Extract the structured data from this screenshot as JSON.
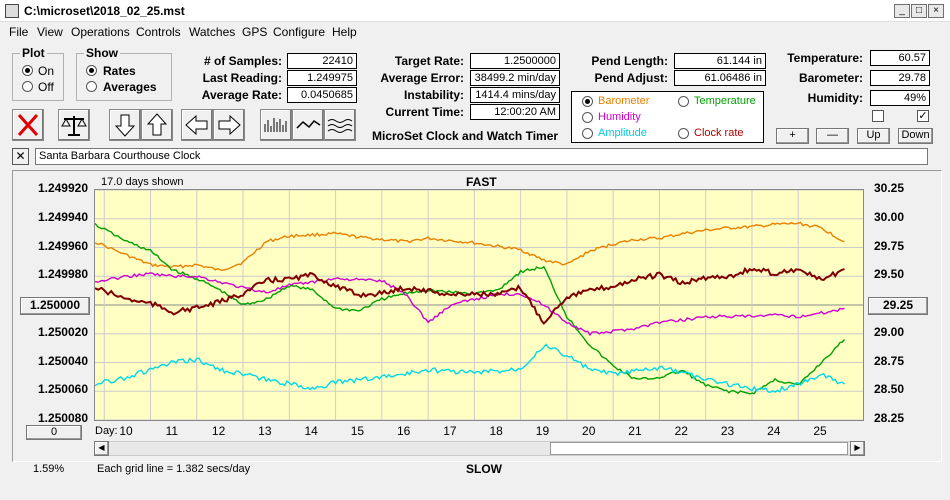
{
  "window": {
    "title": "C:\\microset\\2018_02_25.mst"
  },
  "menu": [
    "File",
    "View",
    "Operations",
    "Controls",
    "Watches",
    "GPS",
    "Configure",
    "Help"
  ],
  "plot_group": {
    "title": "Plot",
    "options": [
      "On",
      "Off"
    ],
    "selected": "On"
  },
  "show_group": {
    "title": "Show",
    "options": [
      "Rates",
      "Averages"
    ],
    "selected": "Rates"
  },
  "stats_left": [
    {
      "label": "# of Samples:",
      "value": "22410"
    },
    {
      "label": "Last Reading:",
      "value": "1.249975"
    },
    {
      "label": "Average Rate:",
      "value": "0.0450685"
    }
  ],
  "stats_mid": [
    {
      "label": "Target Rate:",
      "value": "1.2500000"
    },
    {
      "label": "Average Error:",
      "value": "38499.2 min/day"
    },
    {
      "label": "Instability:",
      "value": "1414.4 mins/day"
    },
    {
      "label": "Current Time:",
      "value": "12:00:20 AM"
    }
  ],
  "app_subtitle": "MicroSet Clock and Watch Timer",
  "pend": [
    {
      "label": "Pend Length:",
      "value": "61.144 in"
    },
    {
      "label": "Pend Adjust:",
      "value": "61.06486 in"
    }
  ],
  "env": [
    {
      "label": "Temperature:",
      "value": "60.57"
    },
    {
      "label": "Barometer:",
      "value": "29.78"
    },
    {
      "label": "Humidity:",
      "value": "49%"
    }
  ],
  "overlay_options": [
    {
      "label": "Barometer",
      "color": "#e88000",
      "selected": true
    },
    {
      "label": "Temperature",
      "color": "#00a000",
      "selected": false
    },
    {
      "label": "Humidity",
      "color": "#d000d0",
      "selected": false
    },
    {
      "label": "Clock rate",
      "color": "#b00000",
      "selected": false
    },
    {
      "label": "Amplitude",
      "color": "#00c8e0",
      "selected": false
    }
  ],
  "checkboxes": [
    false,
    true
  ],
  "small_buttons": [
    "+",
    "—",
    "Up",
    "Down"
  ],
  "description": "Santa Barbara Courthouse Clock",
  "chart_data": {
    "type": "line",
    "header_left": "17.0 days shown",
    "top_label": "FAST",
    "bottom_label": "SLOW",
    "footer_left": "Each grid line = 1.382 secs/day",
    "x_axis_label": "Day:",
    "x_ticks": [
      "10",
      "11",
      "12",
      "13",
      "14",
      "15",
      "16",
      "17",
      "18",
      "19",
      "20",
      "21",
      "22",
      "23",
      "24",
      "25"
    ],
    "y_left_ticks": [
      "1.249920",
      "1.249940",
      "1.249960",
      "1.249980",
      "1.250000",
      "1.250020",
      "1.250040",
      "1.250060",
      "1.250080"
    ],
    "y_left_ylim": [
      1.24992,
      1.25008
    ],
    "y_right_ticks": [
      "30.25",
      "30.00",
      "29.75",
      "29.50",
      "29.25",
      "29.00",
      "28.75",
      "28.50",
      "28.25"
    ],
    "y_right_ylim": [
      28.25,
      30.25
    ],
    "center_button": "1.250000",
    "right_button": "29.25",
    "zero_button": "0",
    "percent": "1.59%",
    "xlim": [
      9.3,
      25.9
    ],
    "series": [
      {
        "name": "Barometer",
        "color": "#e88000",
        "axis": "right",
        "x": [
          9.3,
          10,
          10.5,
          11,
          11.5,
          12,
          12.5,
          13,
          13.5,
          14,
          14.5,
          15,
          15.5,
          16,
          16.5,
          17,
          17.5,
          18,
          18.5,
          19,
          19.5,
          20,
          20.5,
          21,
          21.5,
          22,
          22.5,
          23,
          23.5,
          24,
          24.5,
          25,
          25.5
        ],
        "y": [
          29.8,
          29.68,
          29.6,
          29.58,
          29.6,
          29.55,
          29.62,
          29.8,
          29.85,
          29.86,
          29.87,
          29.84,
          29.82,
          29.8,
          29.83,
          29.81,
          29.79,
          29.76,
          29.73,
          29.64,
          29.6,
          29.72,
          29.78,
          29.82,
          29.83,
          29.87,
          29.9,
          29.92,
          29.93,
          29.95,
          29.96,
          29.92,
          29.8
        ]
      },
      {
        "name": "Temperature",
        "color": "#00a000",
        "axis": "right",
        "x": [
          9.3,
          10,
          10.5,
          11,
          11.5,
          12,
          12.5,
          13,
          13.5,
          14,
          14.5,
          15,
          15.5,
          16,
          16.5,
          17,
          17.5,
          18,
          18.5,
          19,
          19.5,
          20,
          20.5,
          21,
          21.5,
          22,
          22.5,
          23,
          23.5,
          24,
          24.5,
          25,
          25.5
        ],
        "y": [
          29.95,
          29.8,
          29.72,
          29.55,
          29.48,
          29.38,
          29.25,
          29.3,
          29.42,
          29.38,
          29.22,
          29.2,
          29.3,
          29.35,
          29.38,
          29.36,
          29.35,
          29.38,
          29.54,
          29.58,
          29.15,
          28.9,
          28.72,
          28.6,
          28.62,
          28.68,
          28.55,
          28.5,
          28.48,
          28.6,
          28.55,
          28.75,
          28.95
        ]
      },
      {
        "name": "Humidity",
        "color": "#d000d0",
        "axis": "right",
        "x": [
          9.3,
          10,
          10.5,
          11,
          11.5,
          12,
          12.5,
          13,
          13.5,
          14,
          14.5,
          15,
          15.5,
          16,
          16.5,
          17,
          17.5,
          18,
          18.5,
          19,
          19.5,
          20,
          20.5,
          21,
          21.5,
          22,
          22.5,
          23,
          23.5,
          24,
          24.5,
          25,
          25.5
        ],
        "y": [
          29.45,
          29.5,
          29.52,
          29.5,
          29.5,
          29.45,
          29.4,
          29.36,
          29.42,
          29.45,
          29.48,
          29.47,
          29.46,
          29.35,
          29.1,
          29.25,
          29.3,
          29.34,
          29.35,
          29.25,
          29.1,
          29.0,
          29.02,
          29.05,
          29.1,
          29.12,
          29.15,
          29.15,
          29.15,
          29.16,
          29.15,
          29.18,
          29.22
        ]
      },
      {
        "name": "Clock rate",
        "color": "#800000",
        "axis": "left",
        "x": [
          9.3,
          10,
          10.5,
          11,
          11.5,
          12,
          12.5,
          13,
          13.5,
          14,
          14.5,
          15,
          15.5,
          16,
          16.5,
          17,
          17.5,
          18,
          18.5,
          19,
          19.5,
          20,
          20.5,
          21,
          21.5,
          22,
          22.5,
          23,
          23.5,
          24,
          24.5,
          25,
          25.5
        ],
        "y": [
          1.249988,
          1.249996,
          1.249999,
          1.250005,
          1.250002,
          1.249998,
          1.249992,
          1.249983,
          1.249982,
          1.249979,
          1.249987,
          1.249993,
          1.249992,
          1.249988,
          1.24999,
          1.249993,
          1.249992,
          1.249993,
          1.249988,
          1.250012,
          1.249994,
          1.24999,
          1.249987,
          1.249982,
          1.249979,
          1.249985,
          1.249981,
          1.24998,
          1.249975,
          1.249978,
          1.249975,
          1.249983,
          1.249975
        ]
      },
      {
        "name": "Amplitude",
        "color": "#00d8e8",
        "axis": "left",
        "x": [
          9.3,
          10,
          10.5,
          11,
          11.5,
          12,
          12.5,
          13,
          13.5,
          14,
          14.5,
          15,
          15.5,
          16,
          16.5,
          17,
          17.5,
          18,
          18.5,
          19,
          19.5,
          20,
          20.5,
          21,
          21.5,
          22,
          22.5,
          23,
          23.5,
          24,
          24.5,
          25,
          25.5
        ],
        "y": [
          1.250055,
          1.25005,
          1.250045,
          1.25004,
          1.250038,
          1.250045,
          1.250048,
          1.250052,
          1.250055,
          1.250058,
          1.250054,
          1.250052,
          1.25005,
          1.250048,
          1.250045,
          1.250046,
          1.250047,
          1.250046,
          1.250044,
          1.250028,
          1.250035,
          1.250045,
          1.250048,
          1.250046,
          1.250044,
          1.250047,
          1.250052,
          1.250055,
          1.250058,
          1.25006,
          1.250055,
          1.250048,
          1.250055
        ]
      }
    ]
  }
}
